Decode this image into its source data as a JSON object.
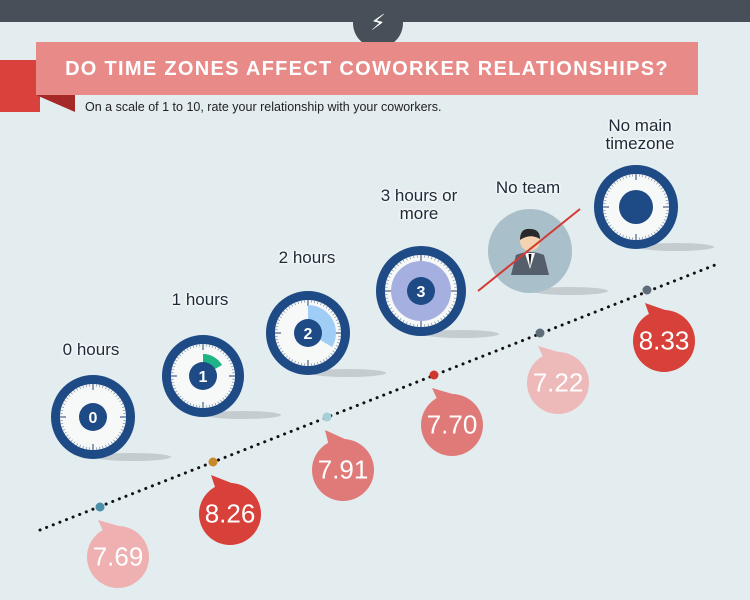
{
  "header": {
    "title": "DO TIME ZONES AFFECT COWORKER RELATIONSHIPS?",
    "subtitle": "On a scale of 1 to 10, rate your relationship with your coworkers.",
    "icon": "lightning-bolt-icon"
  },
  "chart_data": {
    "type": "scatter",
    "title": "DO TIME ZONES AFFECT COWORKER RELATIONSHIPS?",
    "categories": [
      "0 hours",
      "1 hours",
      "2 hours",
      "3 hours or more",
      "No team",
      "No main timezone"
    ],
    "values": [
      7.69,
      8.26,
      7.91,
      7.7,
      7.22,
      8.33
    ],
    "value_labels": [
      "7.69",
      "8.26",
      "7.91",
      "7.70",
      "7.22",
      "8.33"
    ],
    "clock_digits": [
      "0",
      "1",
      "2",
      "3",
      "",
      ""
    ],
    "point_colors": [
      "#4a90a8",
      "#c8892a",
      "#a8cfd8",
      "#d0382c",
      "#5d6e7a",
      "#5d6e7a"
    ],
    "bubble_colors": [
      "#eeb0b0",
      "#d8403a",
      "#e07a78",
      "#e07a78",
      "#eeb9b9",
      "#d8403a"
    ],
    "trend_line": "dotted",
    "grid": false
  },
  "colors": {
    "topbar": "#474f59",
    "banner": "#e88a87",
    "ribbon": "#d9413d",
    "clock_ring": "#1e4a85",
    "background": "#e3ecef"
  }
}
